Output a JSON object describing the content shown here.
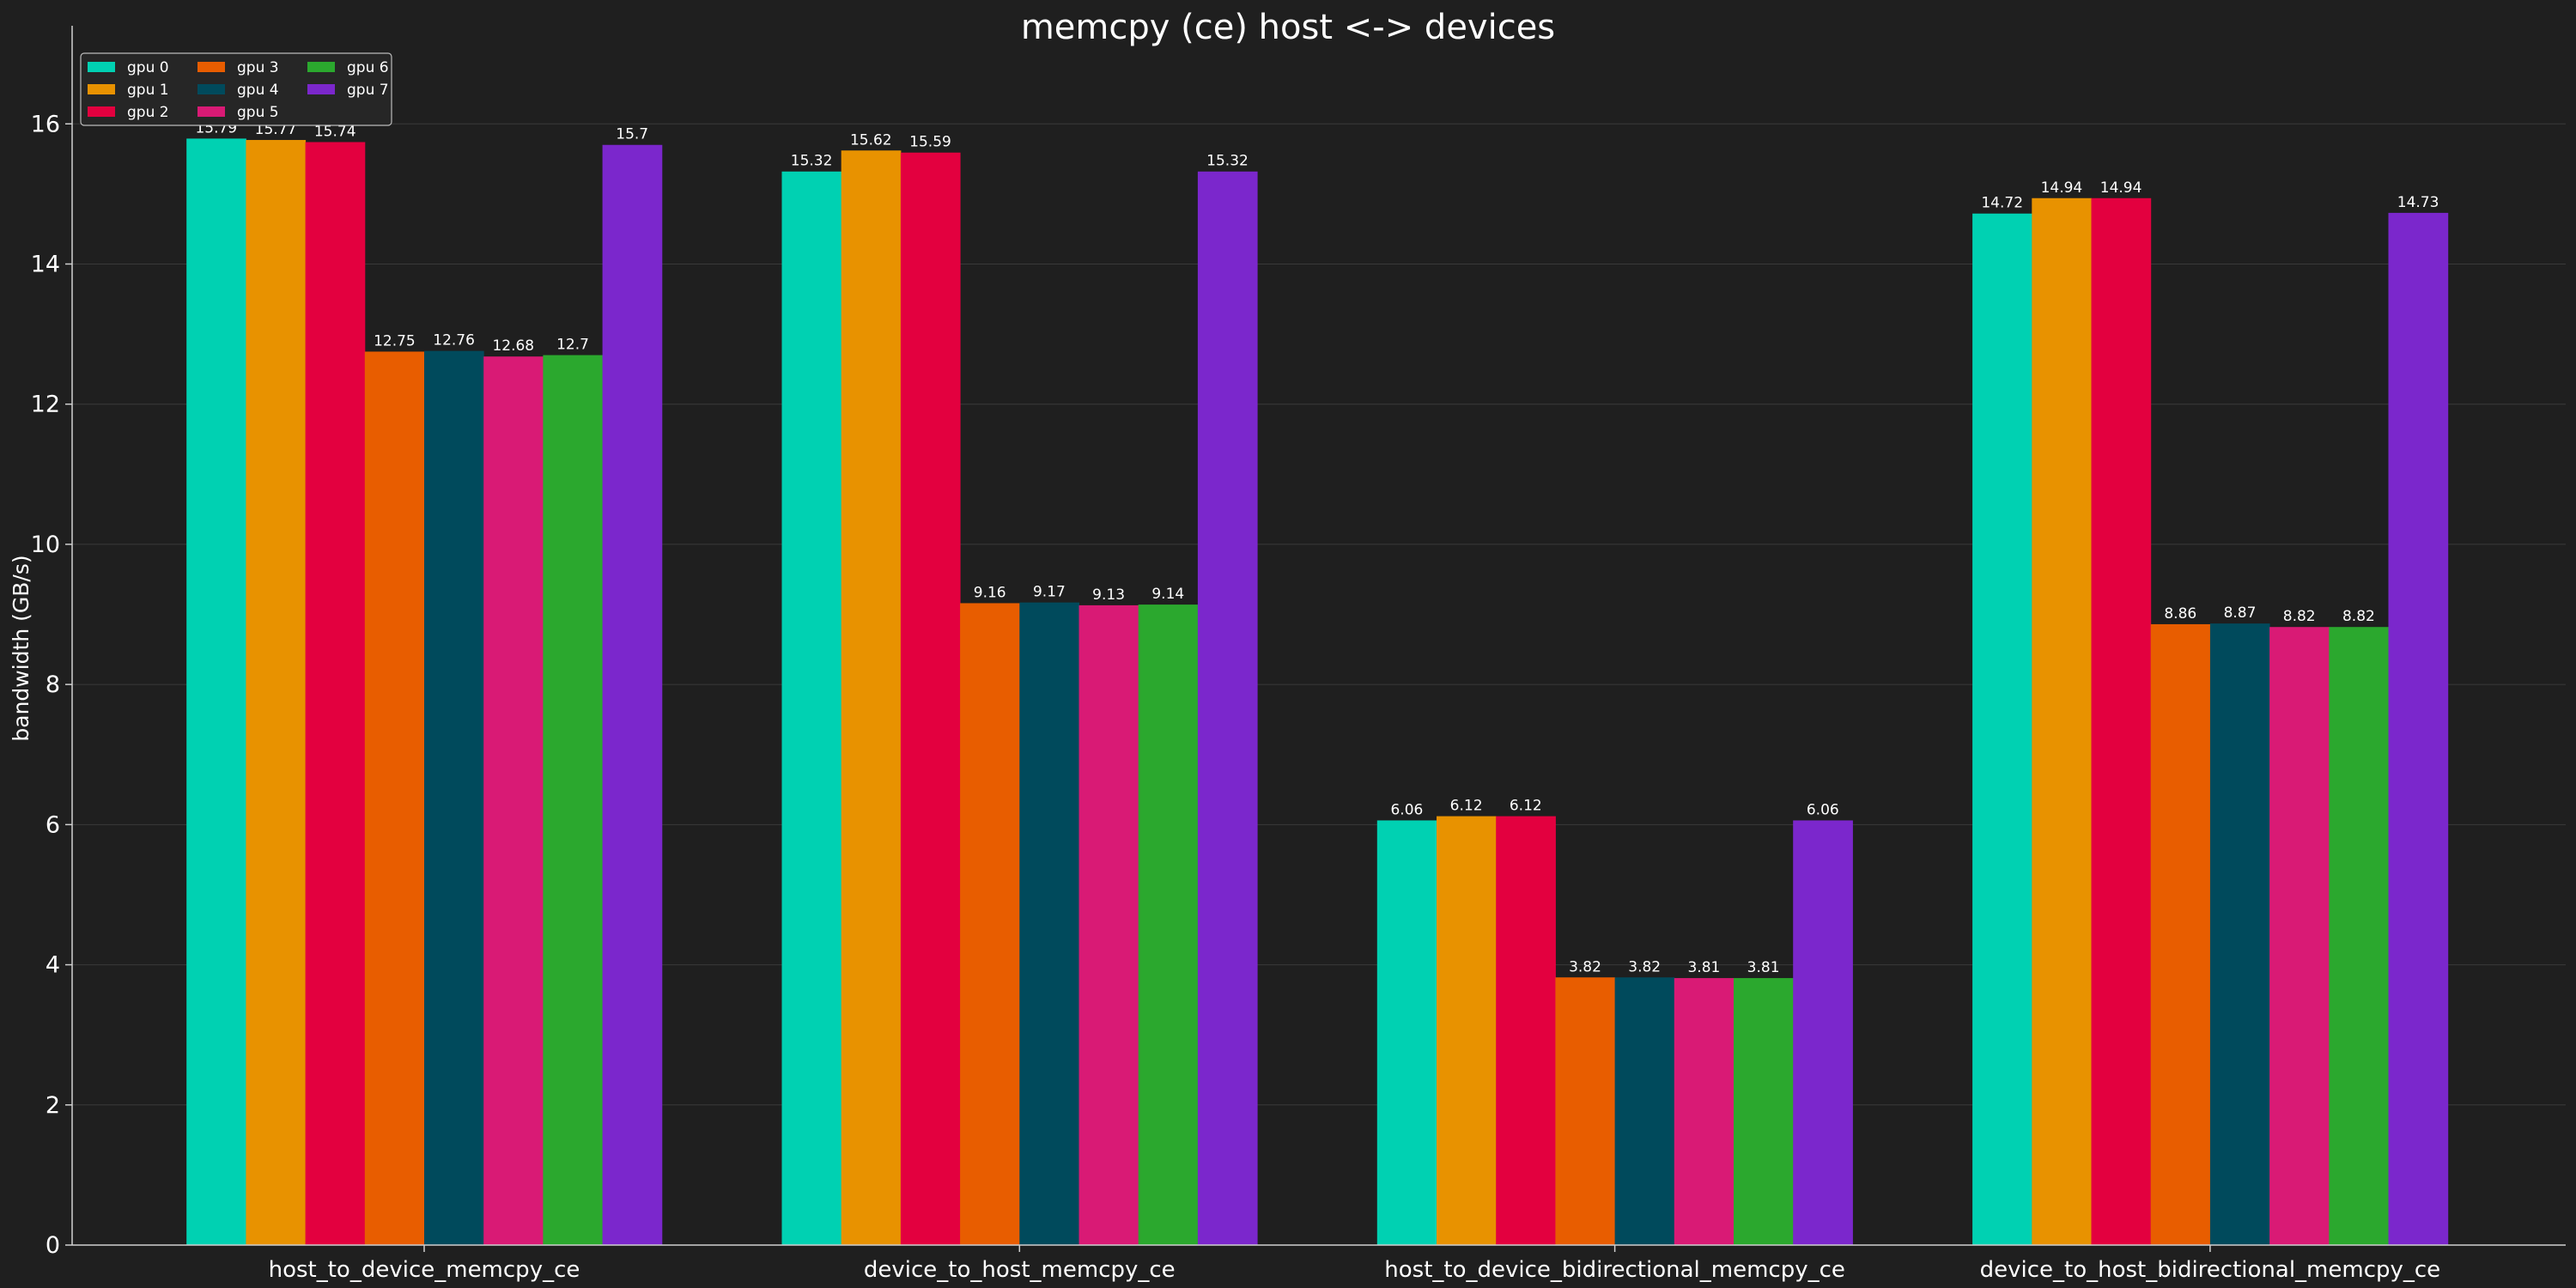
{
  "chart_data": {
    "type": "bar",
    "title": "memcpy (ce) host <-> devices",
    "xlabel": "",
    "ylabel": "bandwidth (GB/s)",
    "ylim": [
      0,
      17.4
    ],
    "yticks": [
      0,
      2,
      4,
      6,
      8,
      10,
      12,
      14,
      16
    ],
    "grid": true,
    "legend_position": "top-left",
    "categories": [
      "host_to_device_memcpy_ce",
      "device_to_host_memcpy_ce",
      "host_to_device_bidirectional_memcpy_ce",
      "device_to_host_bidirectional_memcpy_ce"
    ],
    "series": [
      {
        "name": "gpu 0",
        "color": "#00d1b2",
        "values": [
          15.79,
          15.32,
          6.06,
          14.72
        ],
        "labels": [
          "15.79",
          "15.32",
          "6.06",
          "14.72"
        ]
      },
      {
        "name": "gpu 1",
        "color": "#e89200",
        "values": [
          15.77,
          15.62,
          6.12,
          14.94
        ],
        "labels": [
          "15.77",
          "15.62",
          "6.12",
          "14.94"
        ]
      },
      {
        "name": "gpu 2",
        "color": "#e3003f",
        "values": [
          15.74,
          15.59,
          6.12,
          14.94
        ],
        "labels": [
          "15.74",
          "15.59",
          "6.12",
          "14.94"
        ]
      },
      {
        "name": "gpu 3",
        "color": "#e85d00",
        "values": [
          12.75,
          9.16,
          3.82,
          8.86
        ],
        "labels": [
          "12.75",
          "9.16",
          "3.82",
          "8.86"
        ]
      },
      {
        "name": "gpu 4",
        "color": "#004a5c",
        "values": [
          12.76,
          9.17,
          3.82,
          8.87
        ],
        "labels": [
          "12.76",
          "9.17",
          "3.82",
          "8.87"
        ]
      },
      {
        "name": "gpu 5",
        "color": "#d91a75",
        "values": [
          12.68,
          9.13,
          3.81,
          8.82
        ],
        "labels": [
          "12.68",
          "9.13",
          "3.81",
          "8.82"
        ]
      },
      {
        "name": "gpu 6",
        "color": "#2ba82e",
        "values": [
          12.7,
          9.14,
          3.81,
          8.82
        ],
        "labels": [
          "12.7",
          "9.14",
          "3.81",
          "8.82"
        ]
      },
      {
        "name": "gpu 7",
        "color": "#7b27cc",
        "values": [
          15.7,
          15.32,
          6.06,
          14.73
        ],
        "labels": [
          "15.7",
          "15.32",
          "6.06",
          "14.73"
        ]
      }
    ]
  },
  "style": {
    "background": "#1f1f1f",
    "axis_color": "#d0d0d0",
    "grid_color": "#3a3a3a",
    "text_color": "#ffffff",
    "legend_border": "#bbbbbb"
  }
}
